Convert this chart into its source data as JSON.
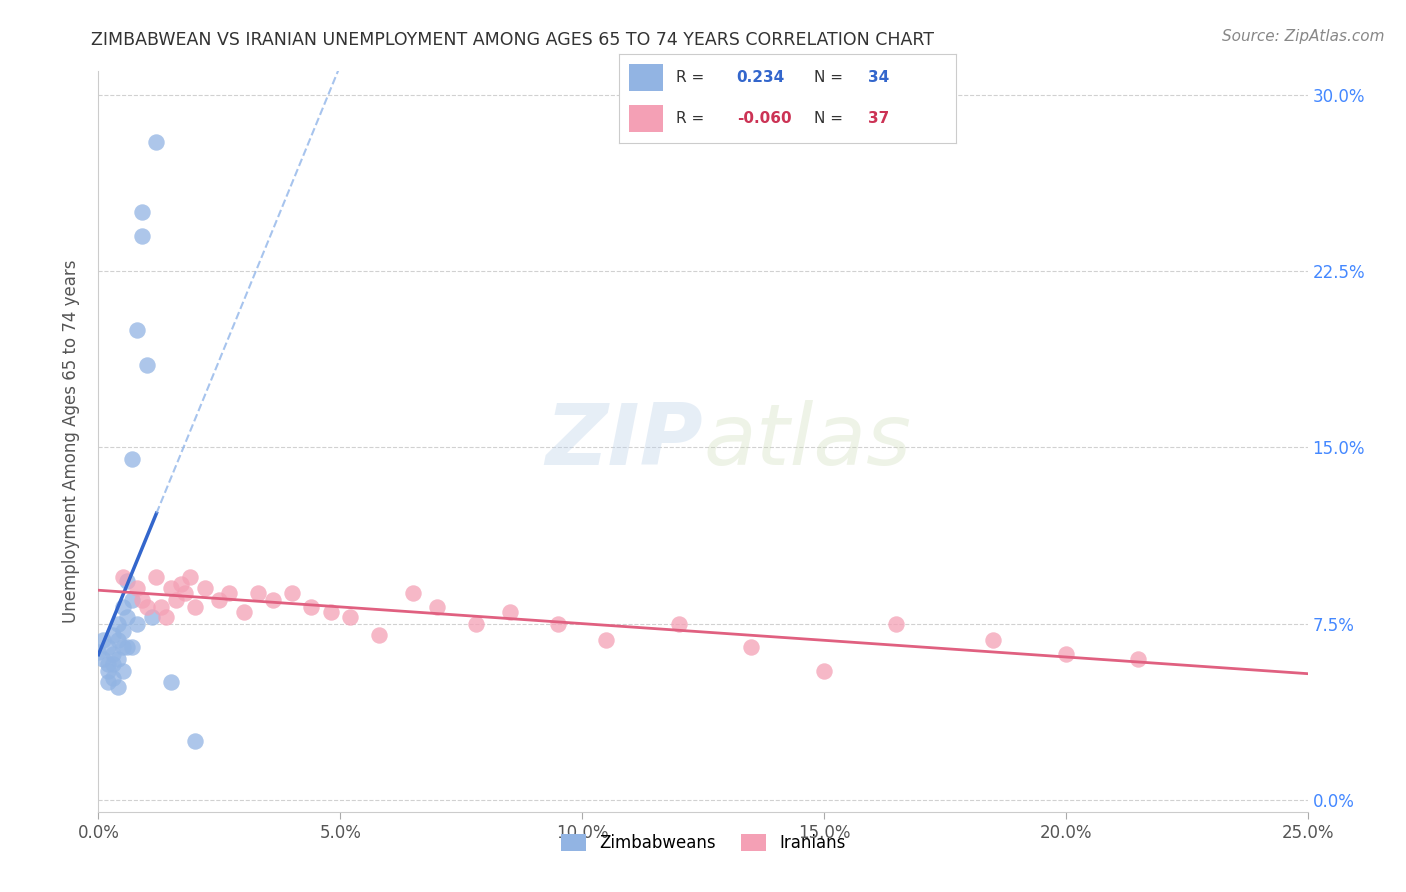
{
  "title": "ZIMBABWEAN VS IRANIAN UNEMPLOYMENT AMONG AGES 65 TO 74 YEARS CORRELATION CHART",
  "source": "Source: ZipAtlas.com",
  "ylabel": "Unemployment Among Ages 65 to 74 years",
  "xlabel_ticks": [
    "0.0%",
    "5.0%",
    "10.0%",
    "15.0%",
    "20.0%",
    "25.0%"
  ],
  "ylabel_ticks": [
    "0.0%",
    "7.5%",
    "15.0%",
    "22.5%",
    "30.0%"
  ],
  "xlim": [
    0.0,
    0.25
  ],
  "ylim": [
    -0.005,
    0.31
  ],
  "zimbabwe_color": "#92b4e3",
  "iran_color": "#f4a0b5",
  "zimbabwe_line_color": "#3366cc",
  "iran_line_color": "#e06080",
  "zimbabwe_R": "0.234",
  "zimbabwe_N": "34",
  "iran_R": "-0.060",
  "iran_N": "37",
  "legend_label_zimbabwe": "Zimbabweans",
  "legend_label_iran": "Iranians",
  "zimbabwe_x": [
    0.0,
    0.001,
    0.001,
    0.002,
    0.002,
    0.002,
    0.002,
    0.003,
    0.003,
    0.003,
    0.003,
    0.004,
    0.004,
    0.004,
    0.004,
    0.005,
    0.005,
    0.005,
    0.005,
    0.006,
    0.006,
    0.006,
    0.007,
    0.007,
    0.007,
    0.008,
    0.008,
    0.009,
    0.009,
    0.01,
    0.011,
    0.012,
    0.015,
    0.02
  ],
  "zimbabwe_y": [
    0.063,
    0.068,
    0.06,
    0.065,
    0.058,
    0.055,
    0.05,
    0.07,
    0.062,
    0.058,
    0.052,
    0.075,
    0.068,
    0.06,
    0.048,
    0.082,
    0.072,
    0.065,
    0.055,
    0.093,
    0.078,
    0.065,
    0.145,
    0.085,
    0.065,
    0.2,
    0.075,
    0.24,
    0.25,
    0.185,
    0.078,
    0.28,
    0.05,
    0.025
  ],
  "iran_x": [
    0.005,
    0.008,
    0.009,
    0.01,
    0.012,
    0.013,
    0.014,
    0.015,
    0.016,
    0.017,
    0.018,
    0.019,
    0.02,
    0.022,
    0.025,
    0.027,
    0.03,
    0.033,
    0.036,
    0.04,
    0.044,
    0.048,
    0.052,
    0.058,
    0.065,
    0.07,
    0.078,
    0.085,
    0.095,
    0.105,
    0.12,
    0.135,
    0.15,
    0.165,
    0.185,
    0.2,
    0.215
  ],
  "iran_y": [
    0.095,
    0.09,
    0.085,
    0.082,
    0.095,
    0.082,
    0.078,
    0.09,
    0.085,
    0.092,
    0.088,
    0.095,
    0.082,
    0.09,
    0.085,
    0.088,
    0.08,
    0.088,
    0.085,
    0.088,
    0.082,
    0.08,
    0.078,
    0.07,
    0.088,
    0.082,
    0.075,
    0.08,
    0.075,
    0.068,
    0.075,
    0.065,
    0.055,
    0.075,
    0.068,
    0.062,
    0.06
  ],
  "watermark_zip": "ZIP",
  "watermark_atlas": "atlas",
  "grid_color": "#cccccc",
  "background_color": "#ffffff"
}
